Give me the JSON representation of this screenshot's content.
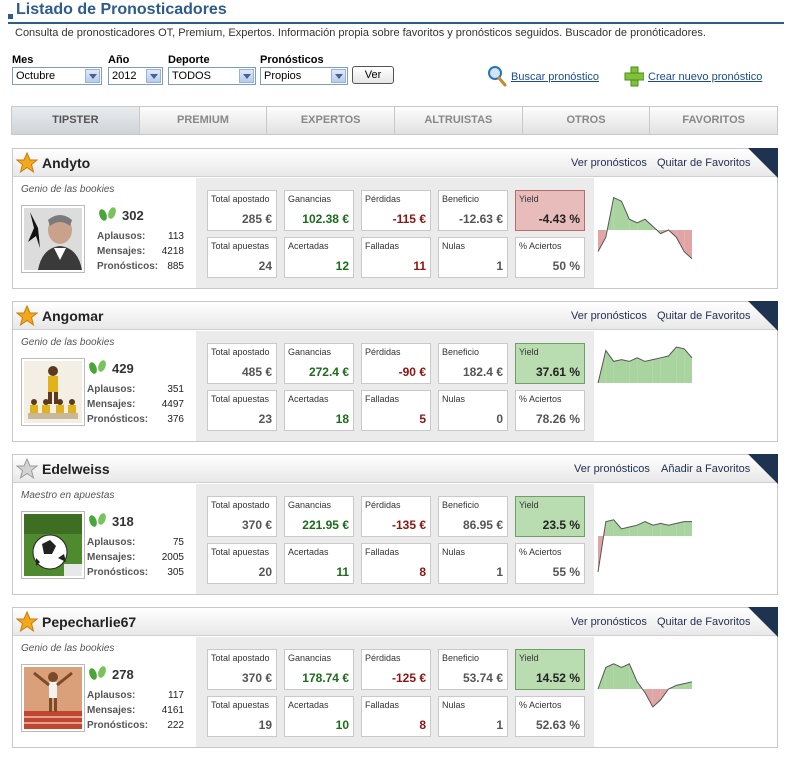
{
  "page": {
    "title": "Listado de Pronosticadores",
    "subtitle": "Consulta de pronosticadores OT, Premium, Expertos. Información propia sobre favoritos y pronósticos seguidos. Buscador de pronóticadores."
  },
  "filters": {
    "mes": {
      "label": "Mes",
      "value": "Octubre"
    },
    "ano": {
      "label": "Año",
      "value": "2012"
    },
    "deporte": {
      "label": "Deporte",
      "value": "TODOS"
    },
    "pronosticos": {
      "label": "Pronósticos",
      "value": "Propios"
    },
    "ver_label": "Ver"
  },
  "actions": {
    "buscar": "Buscar pronóstico",
    "crear": "Crear nuevo pronóstico"
  },
  "tabs": [
    {
      "label": "TIPSTER",
      "active": true
    },
    {
      "label": "PREMIUM"
    },
    {
      "label": "EXPERTOS"
    },
    {
      "label": "ALTRUISTAS"
    },
    {
      "label": "OTROS"
    },
    {
      "label": "FAVORITOS"
    }
  ],
  "labels": {
    "aplausos": "Aplausos:",
    "mensajes": "Mensajes:",
    "pronosticos": "Pronósticos:",
    "total_apostado": "Total apostado",
    "ganancias": "Ganancias",
    "perdidas": "Pérdidas",
    "beneficio": "Beneficio",
    "yield": "Yield",
    "total_apuestas": "Total apuestas",
    "acertadas": "Acertadas",
    "falladas": "Falladas",
    "nulas": "Nulas",
    "aciertos": "% Aciertos",
    "ver_pronosticos": "Ver pronósticos"
  },
  "tipsters": [
    {
      "name": "Andyto",
      "favorite": true,
      "fav_action": "Quitar de Favoritos",
      "rank": "Genio de las bookies",
      "claps": "302",
      "aplausos": "113",
      "mensajes": "4218",
      "pronosticos": "885",
      "total_apostado": "285 €",
      "ganancias": "102.38 €",
      "perdidas": "-115 €",
      "beneficio": "-12.63 €",
      "yield": "-4.43 %",
      "yield_sign": "neg",
      "total_apuestas": "24",
      "acertadas": "12",
      "falladas": "11",
      "nulas": "1",
      "aciertos": "50 %",
      "trend": [
        -0.6,
        -0.2,
        0.9,
        0.8,
        0.3,
        0.2,
        0.3,
        0.1,
        -0.1,
        0.0,
        -0.2,
        -0.6,
        -0.8
      ]
    },
    {
      "name": "Angomar",
      "favorite": true,
      "fav_action": "Quitar de Favoritos",
      "rank": "Genio de las bookies",
      "claps": "429",
      "aplausos": "351",
      "mensajes": "4497",
      "pronosticos": "376",
      "total_apostado": "485 €",
      "ganancias": "272.4 €",
      "perdidas": "-90 €",
      "beneficio": "182.4 €",
      "yield": "37.61 %",
      "yield_sign": "pos",
      "total_apuestas": "23",
      "acertadas": "18",
      "falladas": "5",
      "nulas": "0",
      "aciertos": "78.26 %",
      "trend": [
        0.0,
        0.9,
        0.6,
        0.65,
        0.6,
        0.7,
        0.6,
        0.65,
        0.7,
        0.75,
        1.0,
        0.95,
        0.7
      ]
    },
    {
      "name": "Edelweiss",
      "favorite": false,
      "fav_action": "Añadir a Favoritos",
      "rank": "Maestro en apuestas",
      "claps": "318",
      "aplausos": "75",
      "mensajes": "2005",
      "pronosticos": "305",
      "total_apostado": "370 €",
      "ganancias": "221.95 €",
      "perdidas": "-135 €",
      "beneficio": "86.95 €",
      "yield": "23.5 %",
      "yield_sign": "pos",
      "total_apuestas": "20",
      "acertadas": "11",
      "falladas": "8",
      "nulas": "1",
      "aciertos": "55 %",
      "trend": [
        -1.0,
        0.4,
        0.45,
        0.2,
        0.25,
        0.3,
        0.4,
        0.3,
        0.35,
        0.3,
        0.35,
        0.4,
        0.4
      ]
    },
    {
      "name": "Pepecharlie67",
      "favorite": true,
      "fav_action": "Quitar de Favoritos",
      "rank": "Genio de las bookies",
      "claps": "278",
      "aplausos": "117",
      "mensajes": "4161",
      "pronosticos": "222",
      "total_apostado": "370 €",
      "ganancias": "178.74 €",
      "perdidas": "-125 €",
      "beneficio": "53.74 €",
      "yield": "14.52 %",
      "yield_sign": "pos",
      "total_apuestas": "19",
      "acertadas": "10",
      "falladas": "8",
      "nulas": "1",
      "aciertos": "52.63 %",
      "trend": [
        0.0,
        0.6,
        0.7,
        0.6,
        0.7,
        0.2,
        -0.1,
        -0.5,
        -0.3,
        0.0,
        0.1,
        0.15,
        0.2
      ]
    }
  ]
}
